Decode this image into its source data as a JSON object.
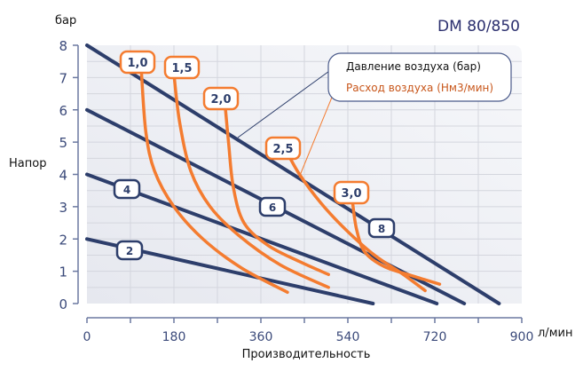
{
  "chart_data": {
    "type": "line",
    "title": "DM 80/850",
    "xlabel": "Производительность",
    "xunit": "л/мин",
    "ylabel": "Напор",
    "yunit": "бар",
    "xlim": [
      0,
      900
    ],
    "ylim": [
      0,
      8
    ],
    "xticks": [
      "0",
      "180",
      "360",
      "540",
      "720",
      "900"
    ],
    "yticks": [
      "0",
      "1",
      "2",
      "3",
      "4",
      "5",
      "6",
      "7",
      "8"
    ],
    "grid": true,
    "legend": {
      "placement": "top-right",
      "pressure_label": "Давление воздуха (бар)",
      "flow_label": "Расход воздуха (Нм3/мин)"
    },
    "colors": {
      "pressure": "#2d3e6b",
      "flow": "#f47c30",
      "axis": "#3b4a7a",
      "title": "#2b2f6e"
    },
    "pressure_series": [
      {
        "name": "2",
        "points": [
          [
            0,
            2
          ],
          [
            592,
            0
          ]
        ]
      },
      {
        "name": "4",
        "points": [
          [
            0,
            4
          ],
          [
            724,
            0
          ]
        ]
      },
      {
        "name": "6",
        "points": [
          [
            0,
            6
          ],
          [
            781,
            0
          ]
        ]
      },
      {
        "name": "8",
        "points": [
          [
            0,
            8
          ],
          [
            853,
            0
          ]
        ]
      }
    ],
    "flow_series": [
      {
        "name": "1,0",
        "points": [
          [
            113,
            7.1
          ],
          [
            122,
            5.3
          ],
          [
            140,
            4.1
          ],
          [
            180,
            3.0
          ],
          [
            240,
            2.0
          ],
          [
            320,
            1.1
          ],
          [
            415,
            0.35
          ]
        ]
      },
      {
        "name": "1,5",
        "points": [
          [
            180,
            7.1
          ],
          [
            192,
            5.6
          ],
          [
            215,
            4.1
          ],
          [
            255,
            3.0
          ],
          [
            315,
            2.1
          ],
          [
            400,
            1.2
          ],
          [
            500,
            0.5
          ]
        ]
      },
      {
        "name": "2,0",
        "points": [
          [
            285,
            6.3
          ],
          [
            293,
            5.0
          ],
          [
            303,
            3.6
          ],
          [
            325,
            2.5
          ],
          [
            375,
            1.8
          ],
          [
            440,
            1.3
          ],
          [
            500,
            0.9
          ]
        ]
      },
      {
        "name": "2,5",
        "points": [
          [
            410,
            4.8
          ],
          [
            440,
            4.0
          ],
          [
            485,
            3.1
          ],
          [
            535,
            2.3
          ],
          [
            595,
            1.5
          ],
          [
            655,
            0.9
          ],
          [
            700,
            0.4
          ]
        ]
      },
      {
        "name": "3,0",
        "points": [
          [
            550,
            3.1
          ],
          [
            558,
            2.3
          ],
          [
            575,
            1.6
          ],
          [
            615,
            1.15
          ],
          [
            675,
            0.85
          ],
          [
            730,
            0.6
          ]
        ]
      }
    ]
  }
}
